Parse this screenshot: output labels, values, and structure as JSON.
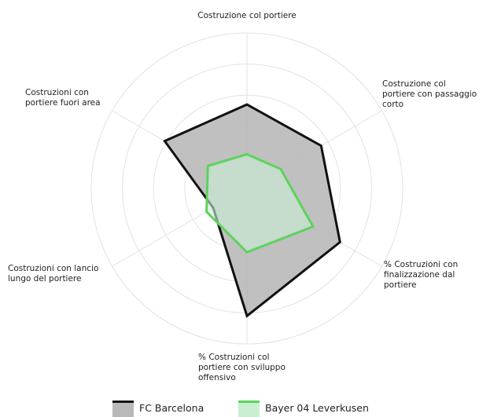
{
  "chart_data": {
    "type": "radar",
    "categories": [
      [
        "Costruzione col portiere"
      ],
      [
        "Costruzione col",
        "portiere con passaggio",
        "corto"
      ],
      [
        "% Costruzioni con",
        "finalizzazione dal",
        "portiere"
      ],
      [
        "% Costruzioni col",
        "portiere con sviluppo",
        "offensivo"
      ],
      [
        "Costruzioni con lancio",
        "lungo del portiere"
      ],
      [
        "Costruzioni con",
        "portiere fuori area"
      ]
    ],
    "rlim": [
      0,
      100
    ],
    "rticks": [
      20,
      40,
      60,
      80,
      100
    ],
    "grid": true,
    "series": [
      {
        "name": "FC Barcelona",
        "color": "#111111",
        "fill": "#b9b9b9",
        "values": [
          54,
          55,
          69,
          82,
          25,
          61
        ]
      },
      {
        "name": "Bayer 04 Leverkusen",
        "color": "#5cd35c",
        "fill": "#c9efd3",
        "values": [
          22,
          25,
          49,
          41,
          30,
          29
        ]
      }
    ],
    "legend": "bottom"
  }
}
